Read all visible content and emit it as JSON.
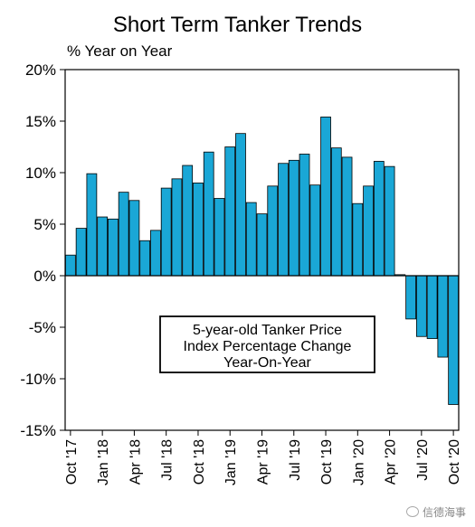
{
  "title": "Short Term Tanker Trends",
  "y_unit_label": "% Year on Year",
  "watermark": "信德海事",
  "colors": {
    "bar": "#1aa7d6",
    "bar_edge": "#000000",
    "axis": "#000000"
  },
  "chart_data": {
    "type": "bar",
    "title": "Short Term Tanker Trends",
    "ylabel": "% Year on Year",
    "ylim": [
      -15,
      20
    ],
    "y_ticks": [
      20,
      15,
      10,
      5,
      0,
      -5,
      -10,
      -15
    ],
    "y_tick_labels": [
      "20%",
      "15%",
      "10%",
      "5%",
      "0%",
      "-5%",
      "-10%",
      "-15%"
    ],
    "x_tick_labels": [
      {
        "index": 0,
        "label": "Oct '17"
      },
      {
        "index": 3,
        "label": "Jan '18"
      },
      {
        "index": 6,
        "label": "Apr '18"
      },
      {
        "index": 9,
        "label": "Jul '18"
      },
      {
        "index": 12,
        "label": "Oct '18"
      },
      {
        "index": 15,
        "label": "Jan '19"
      },
      {
        "index": 18,
        "label": "Apr '19"
      },
      {
        "index": 21,
        "label": "Jul '19"
      },
      {
        "index": 24,
        "label": "Oct '19"
      },
      {
        "index": 27,
        "label": "Jan '20"
      },
      {
        "index": 30,
        "label": "Apr '20"
      },
      {
        "index": 33,
        "label": "Jul '20"
      },
      {
        "index": 36,
        "label": "Oct '20"
      }
    ],
    "series": [
      {
        "values": [
          2.0,
          4.6,
          9.9,
          5.7,
          5.5,
          8.1,
          7.3,
          3.4,
          4.4,
          8.5,
          9.4,
          10.7,
          9.0,
          12.0,
          7.5,
          12.5,
          13.8,
          7.1,
          6.0,
          8.7,
          10.9,
          11.2,
          11.8,
          8.8,
          15.4,
          12.4,
          11.5,
          7.0,
          8.7,
          11.1,
          10.6,
          0.1,
          -4.2,
          -5.9,
          -6.1,
          -7.9,
          -12.5
        ]
      }
    ],
    "annotation": [
      "5-year-old Tanker Price",
      "Index Percentage Change",
      "Year-On-Year"
    ],
    "grid": false,
    "legend": "none"
  }
}
